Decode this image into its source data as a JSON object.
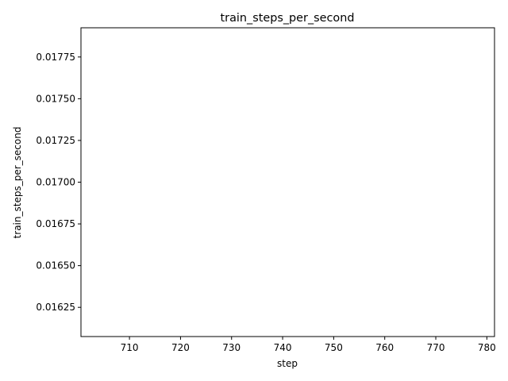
{
  "chart_data": {
    "type": "line",
    "title": "train_steps_per_second",
    "xlabel": "step",
    "ylabel": "train_steps_per_second",
    "xlim": [
      700.5,
      781.5
    ],
    "ylim": [
      0.016075,
      0.017925
    ],
    "x_ticks": [
      710,
      720,
      730,
      740,
      750,
      760,
      770,
      780
    ],
    "x_tick_labels": [
      "710",
      "720",
      "730",
      "740",
      "750",
      "760",
      "770",
      "780"
    ],
    "y_ticks": [
      0.01625,
      0.0165,
      0.01675,
      0.017,
      0.01725,
      0.0175,
      0.01775
    ],
    "y_tick_labels": [
      "0.01625",
      "0.01650",
      "0.01675",
      "0.01700",
      "0.01725",
      "0.01750",
      "0.01775"
    ],
    "grid": false,
    "series": [
      {
        "x": [],
        "y": []
      }
    ]
  },
  "colors": {
    "axis": "#000000",
    "background": "#ffffff"
  }
}
